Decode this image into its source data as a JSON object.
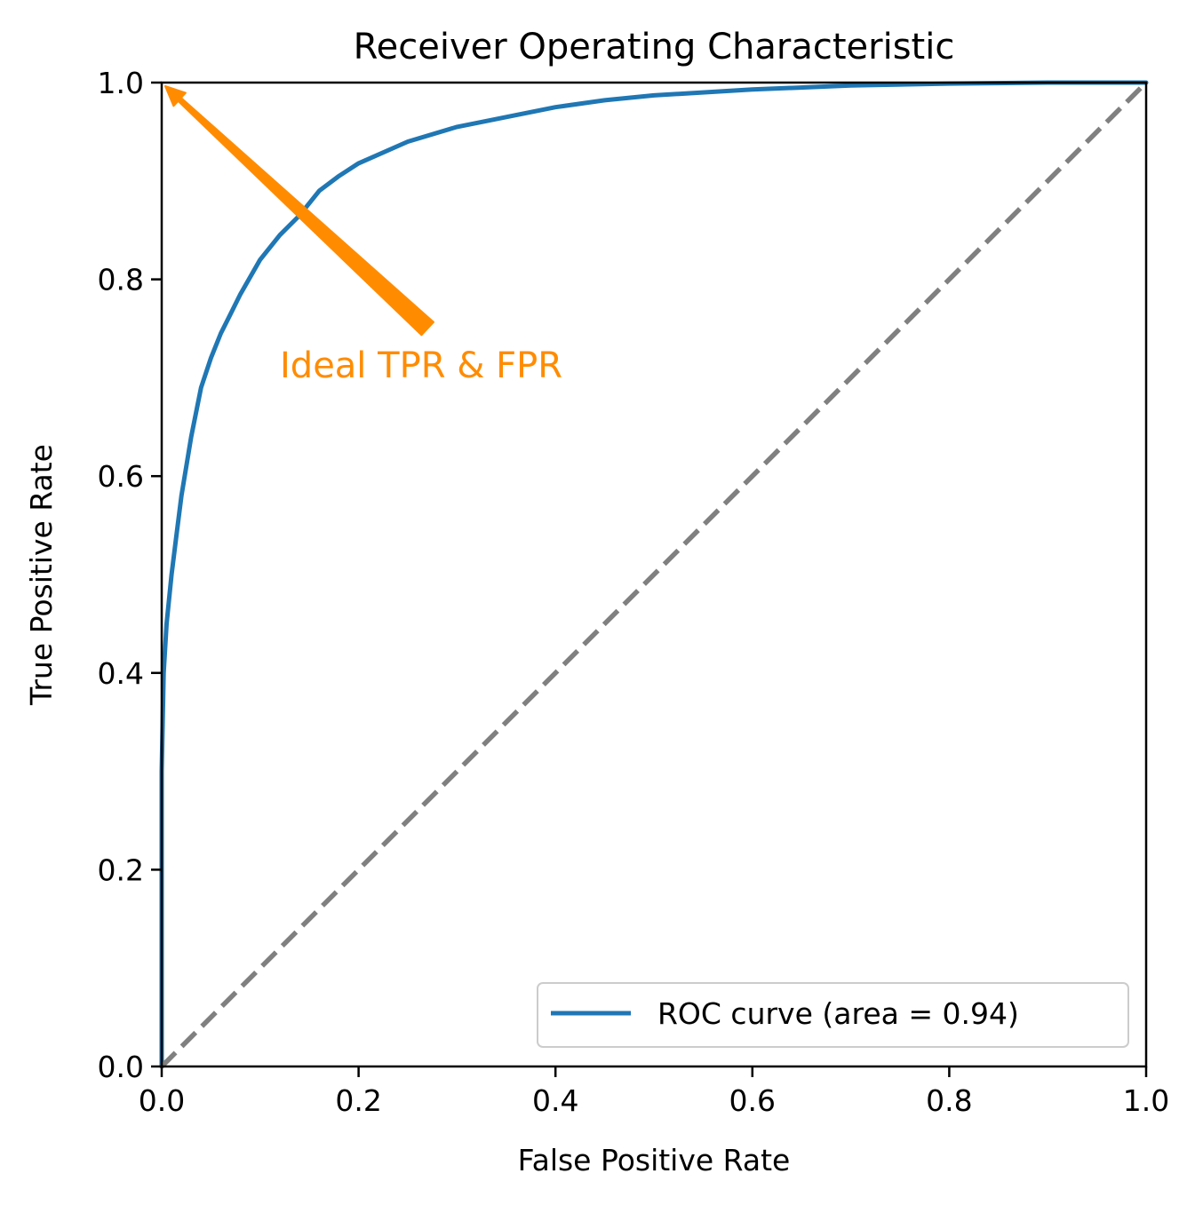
{
  "chart_data": {
    "type": "line",
    "title": "Receiver Operating Characteristic",
    "xlabel": "False Positive Rate",
    "ylabel": "True Positive Rate",
    "xlim": [
      0.0,
      1.0
    ],
    "ylim": [
      0.0,
      1.0
    ],
    "xticks": [
      "0.0",
      "0.2",
      "0.4",
      "0.6",
      "0.8",
      "1.0"
    ],
    "yticks": [
      "0.0",
      "0.2",
      "0.4",
      "0.6",
      "0.8",
      "1.0"
    ],
    "grid": false,
    "legend_position": "lower-right",
    "series": [
      {
        "name": "ROC curve (area = 0.94)",
        "color": "#1f77b4",
        "style": "solid",
        "x": [
          0.0,
          0.0,
          0.002,
          0.005,
          0.01,
          0.015,
          0.02,
          0.03,
          0.04,
          0.05,
          0.06,
          0.07,
          0.08,
          0.1,
          0.12,
          0.14,
          0.16,
          0.18,
          0.2,
          0.25,
          0.3,
          0.35,
          0.4,
          0.45,
          0.5,
          0.6,
          0.7,
          0.8,
          0.9,
          1.0
        ],
        "y": [
          0.0,
          0.3,
          0.4,
          0.45,
          0.5,
          0.54,
          0.58,
          0.64,
          0.69,
          0.72,
          0.745,
          0.765,
          0.785,
          0.82,
          0.845,
          0.865,
          0.89,
          0.905,
          0.918,
          0.94,
          0.955,
          0.965,
          0.975,
          0.982,
          0.987,
          0.993,
          0.997,
          0.999,
          1.0,
          1.0
        ]
      },
      {
        "name": "",
        "color": "#808080",
        "style": "dashed",
        "x": [
          0.0,
          1.0
        ],
        "y": [
          0.0,
          1.0
        ]
      }
    ],
    "annotations": [
      {
        "text": "Ideal TPR & FPR",
        "color": "#ff8c00",
        "text_at": [
          0.12,
          0.7
        ],
        "arrow_from": [
          0.27,
          0.75
        ],
        "arrow_to": [
          0.0,
          1.0
        ]
      }
    ]
  }
}
